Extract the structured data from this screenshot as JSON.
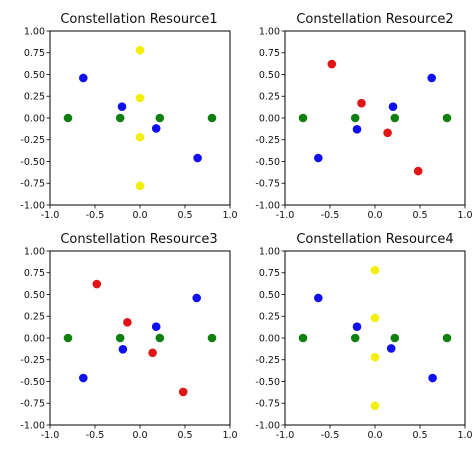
{
  "figure": {
    "background": "#ffffff",
    "axes_color": "#000000",
    "colors": {
      "blue": "#1010ee",
      "red": "#e01515",
      "green": "#0f7f0f",
      "yellow": "#f2ef0a"
    }
  },
  "chart_data": [
    {
      "type": "scatter",
      "title": "Constellation Resource1",
      "xlim": [
        -1.0,
        1.0
      ],
      "ylim": [
        -1.0,
        1.0
      ],
      "xticks": [
        "-1.0",
        "-0.5",
        "0.0",
        "0.5",
        "1.0"
      ],
      "yticks": [
        "1.00",
        "0.75",
        "0.50",
        "0.25",
        "0.00",
        "-0.25",
        "-0.50",
        "-0.75",
        "-1.00"
      ],
      "grid": false,
      "legend": false,
      "series": [
        {
          "color": "blue",
          "points": [
            [
              -0.63,
              0.46
            ],
            [
              -0.2,
              0.13
            ],
            [
              0.18,
              -0.12
            ],
            [
              0.64,
              -0.46
            ]
          ]
        },
        {
          "color": "green",
          "points": [
            [
              -0.8,
              0.0
            ],
            [
              -0.22,
              0.0
            ],
            [
              0.22,
              0.0
            ],
            [
              0.8,
              0.0
            ]
          ]
        },
        {
          "color": "yellow",
          "points": [
            [
              0.0,
              0.78
            ],
            [
              0.0,
              0.23
            ],
            [
              0.0,
              -0.22
            ],
            [
              0.0,
              -0.78
            ]
          ]
        }
      ]
    },
    {
      "type": "scatter",
      "title": "Constellation Resource2",
      "xlim": [
        -1.0,
        1.0
      ],
      "ylim": [
        -1.0,
        1.0
      ],
      "xticks": [
        "-1.0",
        "-0.5",
        "0.0",
        "0.5",
        "1.0"
      ],
      "yticks": [
        "1.00",
        "0.75",
        "0.50",
        "0.25",
        "0.00",
        "-0.25",
        "-0.50",
        "-0.75",
        "-1.00"
      ],
      "grid": false,
      "legend": false,
      "series": [
        {
          "color": "blue",
          "points": [
            [
              0.63,
              0.46
            ],
            [
              0.2,
              0.13
            ],
            [
              -0.2,
              -0.13
            ],
            [
              -0.63,
              -0.46
            ]
          ]
        },
        {
          "color": "red",
          "points": [
            [
              -0.48,
              0.62
            ],
            [
              -0.15,
              0.17
            ],
            [
              0.14,
              -0.17
            ],
            [
              0.48,
              -0.61
            ]
          ]
        },
        {
          "color": "green",
          "points": [
            [
              -0.8,
              0.0
            ],
            [
              -0.22,
              0.0
            ],
            [
              0.22,
              0.0
            ],
            [
              0.8,
              0.0
            ]
          ]
        }
      ]
    },
    {
      "type": "scatter",
      "title": "Constellation Resource3",
      "xlim": [
        -1.0,
        1.0
      ],
      "ylim": [
        -1.0,
        1.0
      ],
      "xticks": [
        "-1.0",
        "-0.5",
        "0.0",
        "0.5",
        "1.0"
      ],
      "yticks": [
        "1.00",
        "0.75",
        "0.50",
        "0.25",
        "0.00",
        "-0.25",
        "-0.50",
        "-0.75",
        "-1.00"
      ],
      "grid": false,
      "legend": false,
      "series": [
        {
          "color": "blue",
          "points": [
            [
              0.63,
              0.46
            ],
            [
              0.18,
              0.13
            ],
            [
              -0.19,
              -0.13
            ],
            [
              -0.63,
              -0.46
            ]
          ]
        },
        {
          "color": "red",
          "points": [
            [
              -0.48,
              0.62
            ],
            [
              -0.14,
              0.18
            ],
            [
              0.14,
              -0.17
            ],
            [
              0.48,
              -0.62
            ]
          ]
        },
        {
          "color": "green",
          "points": [
            [
              -0.8,
              0.0
            ],
            [
              -0.22,
              0.0
            ],
            [
              0.22,
              0.0
            ],
            [
              0.8,
              0.0
            ]
          ]
        }
      ]
    },
    {
      "type": "scatter",
      "title": "Constellation Resource4",
      "xlim": [
        -1.0,
        1.0
      ],
      "ylim": [
        -1.0,
        1.0
      ],
      "xticks": [
        "-1.0",
        "-0.5",
        "0.0",
        "0.5",
        "1.0"
      ],
      "yticks": [
        "1.00",
        "0.75",
        "0.50",
        "0.25",
        "0.00",
        "-0.25",
        "-0.50",
        "-0.75",
        "-1.00"
      ],
      "grid": false,
      "legend": false,
      "series": [
        {
          "color": "blue",
          "points": [
            [
              -0.63,
              0.46
            ],
            [
              -0.2,
              0.13
            ],
            [
              0.18,
              -0.12
            ],
            [
              0.64,
              -0.46
            ]
          ]
        },
        {
          "color": "green",
          "points": [
            [
              -0.8,
              0.0
            ],
            [
              -0.22,
              0.0
            ],
            [
              0.22,
              0.0
            ],
            [
              0.8,
              0.0
            ]
          ]
        },
        {
          "color": "yellow",
          "points": [
            [
              0.0,
              0.78
            ],
            [
              0.0,
              0.23
            ],
            [
              0.0,
              -0.22
            ],
            [
              0.0,
              -0.78
            ]
          ]
        }
      ]
    }
  ]
}
